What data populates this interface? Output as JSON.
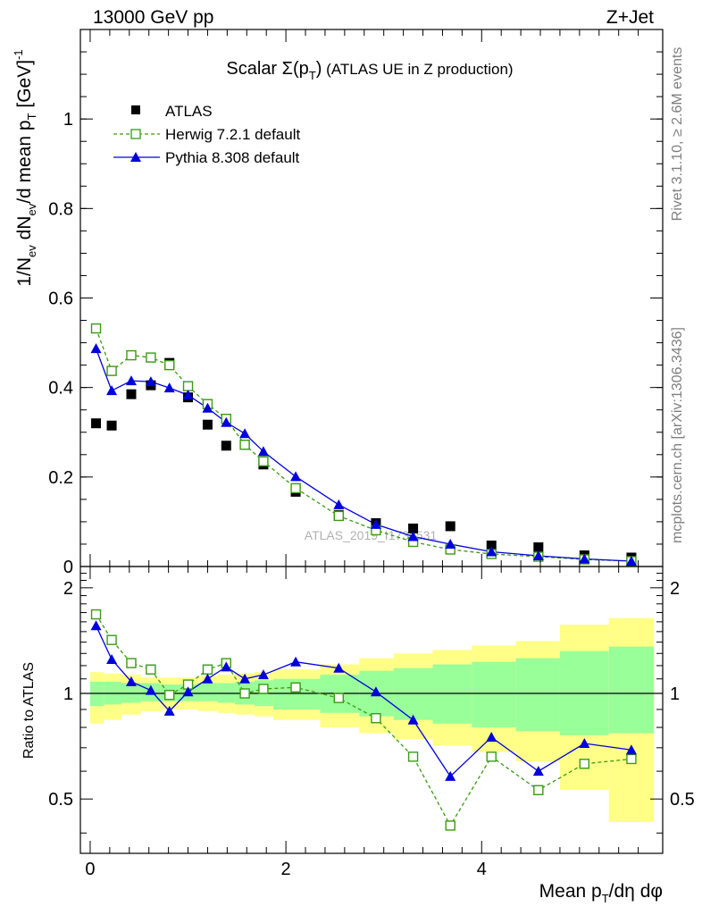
{
  "header": {
    "left": "13000 GeV pp",
    "right": "Z+Jet"
  },
  "side_labels": {
    "rivet": "Rivet 3.1.10, ≥ 2.6M events",
    "mcplots": "mcplots.cern.ch [arXiv:1306.3436]"
  },
  "chart_data": [
    {
      "type": "scatter",
      "panel": "main",
      "title": "Scalar Σ(p_T) (ATLAS UE in Z production)",
      "title_main": "Scalar ",
      "title_sigma": "Σ(p",
      "title_sub": "T",
      "title_close": ")",
      "title_rest": " (ATLAS UE in Z production)",
      "watermark": "ATLAS_2019_I1736531",
      "ylabel": "1/N_ev dN_ev/d mean p_T [GeV]^-1",
      "xlim": [
        -0.1,
        5.85
      ],
      "ylim": [
        0,
        1.2
      ],
      "yticks": [
        0,
        0.2,
        0.4,
        0.6,
        0.8,
        1
      ],
      "ytick_labels": [
        "0",
        "0.2",
        "0.4",
        "0.6",
        "0.8",
        "1"
      ],
      "legend_position": "top-left",
      "x": [
        0.06,
        0.22,
        0.42,
        0.62,
        0.81,
        1.0,
        1.2,
        1.39,
        1.58,
        1.77,
        2.1,
        2.54,
        2.92,
        3.3,
        3.68,
        4.1,
        4.58,
        5.05,
        5.53
      ],
      "series": [
        {
          "name": "ATLAS",
          "color": "#000000",
          "marker": "square",
          "values": [
            0.32,
            0.315,
            0.385,
            0.405,
            0.455,
            0.378,
            0.317,
            0.27,
            0.272,
            0.228,
            0.167,
            0.115,
            0.097,
            0.085,
            0.09,
            0.047,
            0.043,
            0.025,
            0.02
          ]
        },
        {
          "name": "Herwig 7.2.1 default",
          "color": "#3a9b10",
          "marker": "open-square",
          "dashed": true,
          "values": [
            0.532,
            0.437,
            0.472,
            0.467,
            0.45,
            0.403,
            0.363,
            0.33,
            0.272,
            0.235,
            0.175,
            0.113,
            0.081,
            0.055,
            0.038,
            0.028,
            0.022,
            0.016,
            0.012
          ]
        },
        {
          "name": "Pythia 8.308 default",
          "color": "#0000dd",
          "marker": "triangle",
          "values": [
            0.487,
            0.393,
            0.415,
            0.413,
            0.399,
            0.383,
            0.354,
            0.322,
            0.297,
            0.257,
            0.201,
            0.138,
            0.094,
            0.067,
            0.05,
            0.033,
            0.024,
            0.017,
            0.012
          ]
        }
      ]
    },
    {
      "type": "scatter",
      "panel": "ratio",
      "ylabel": "Ratio to ATLAS",
      "xlabel": "Mean p_T/dη dφ",
      "xlabel_main": "Mean p",
      "xlabel_sub": "T",
      "xlabel_rest": "/dη dφ",
      "xlim": [
        -0.1,
        5.85
      ],
      "ylim": [
        0.35,
        2.3
      ],
      "yticks": [
        0.5,
        1,
        2
      ],
      "ytick_labels": [
        "0.5",
        "1",
        "2"
      ],
      "xticks": [
        0,
        2,
        4
      ],
      "xtick_labels": [
        "0",
        "2",
        "4"
      ],
      "reference": 1,
      "bins": [
        [
          0,
          0.14
        ],
        [
          0.14,
          0.32
        ],
        [
          0.32,
          0.52
        ],
        [
          0.52,
          0.72
        ],
        [
          0.72,
          0.9
        ],
        [
          0.9,
          1.1
        ],
        [
          1.1,
          1.3
        ],
        [
          1.3,
          1.48
        ],
        [
          1.48,
          1.68
        ],
        [
          1.68,
          1.87
        ],
        [
          1.87,
          2.35
        ],
        [
          2.35,
          2.75
        ],
        [
          2.75,
          3.1
        ],
        [
          3.1,
          3.5
        ],
        [
          3.5,
          3.9
        ],
        [
          3.9,
          4.35
        ],
        [
          4.35,
          4.8
        ],
        [
          4.8,
          5.3
        ],
        [
          5.3,
          5.76
        ]
      ],
      "band_outer": [
        [
          0.82,
          1.15
        ],
        [
          0.84,
          1.14
        ],
        [
          0.87,
          1.13
        ],
        [
          0.89,
          1.11
        ],
        [
          0.9,
          1.11
        ],
        [
          0.9,
          1.11
        ],
        [
          0.89,
          1.12
        ],
        [
          0.88,
          1.13
        ],
        [
          0.87,
          1.14
        ],
        [
          0.86,
          1.15
        ],
        [
          0.84,
          1.17
        ],
        [
          0.8,
          1.21
        ],
        [
          0.77,
          1.26
        ],
        [
          0.74,
          1.3
        ],
        [
          0.71,
          1.33
        ],
        [
          0.68,
          1.37
        ],
        [
          0.64,
          1.41
        ],
        [
          0.53,
          1.57
        ],
        [
          0.43,
          1.64
        ]
      ],
      "band_inner": [
        [
          0.92,
          1.08
        ],
        [
          0.93,
          1.08
        ],
        [
          0.94,
          1.07
        ],
        [
          0.95,
          1.07
        ],
        [
          0.95,
          1.06
        ],
        [
          0.95,
          1.06
        ],
        [
          0.95,
          1.07
        ],
        [
          0.94,
          1.07
        ],
        [
          0.93,
          1.08
        ],
        [
          0.92,
          1.09
        ],
        [
          0.9,
          1.1
        ],
        [
          0.88,
          1.13
        ],
        [
          0.86,
          1.16
        ],
        [
          0.84,
          1.18
        ],
        [
          0.82,
          1.21
        ],
        [
          0.8,
          1.23
        ],
        [
          0.78,
          1.26
        ],
        [
          0.76,
          1.32
        ],
        [
          0.77,
          1.36
        ]
      ],
      "band_outer_color": "#ffff88",
      "band_inner_color": "#99ff99",
      "x": [
        0.06,
        0.22,
        0.42,
        0.62,
        0.81,
        1.0,
        1.2,
        1.39,
        1.58,
        1.77,
        2.1,
        2.54,
        2.92,
        3.3,
        3.68,
        4.1,
        4.58,
        5.05,
        5.53
      ],
      "series": [
        {
          "name": "Herwig 7.2.1 default",
          "color": "#3a9b10",
          "marker": "open-square",
          "dashed": true,
          "values": [
            1.68,
            1.42,
            1.22,
            1.17,
            0.99,
            1.06,
            1.17,
            1.22,
            1.0,
            1.03,
            1.04,
            0.97,
            0.85,
            0.66,
            0.42,
            0.66,
            0.53,
            0.63,
            0.65
          ]
        },
        {
          "name": "Pythia 8.308 default",
          "color": "#0000dd",
          "marker": "triangle",
          "values": [
            1.56,
            1.25,
            1.08,
            1.02,
            0.89,
            1.01,
            1.1,
            1.19,
            1.1,
            1.13,
            1.23,
            1.18,
            1.01,
            0.84,
            0.58,
            0.75,
            0.6,
            0.72,
            0.69
          ]
        }
      ]
    }
  ]
}
